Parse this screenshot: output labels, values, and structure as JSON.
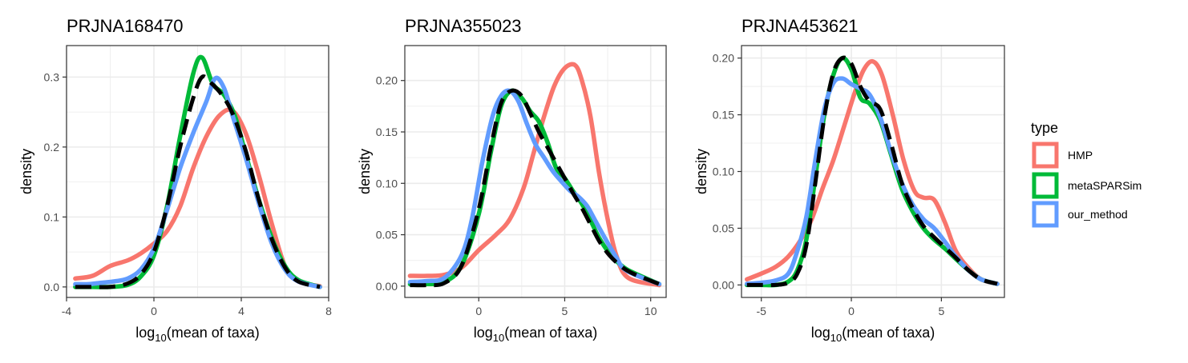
{
  "chart_data": [
    {
      "type": "line",
      "title": "PRJNA168470",
      "xlabel": {
        "prefix": "log",
        "sub": "10",
        "suffix": "(mean of taxa)"
      },
      "ylabel": "density",
      "xlim": [
        -4.0,
        8.0
      ],
      "ylim": [
        -0.015,
        0.345
      ],
      "xticks": [
        -4,
        0,
        4,
        8
      ],
      "xtick_labels": [
        "-4",
        "0",
        "4",
        "8"
      ],
      "yticks": [
        0.0,
        0.1,
        0.2,
        0.3
      ],
      "ytick_labels": [
        "0.0",
        "0.1",
        "0.2",
        "0.3"
      ],
      "grid": true,
      "series": [
        {
          "name": "HMP",
          "x": [
            -3.6,
            -2.8,
            -2,
            -1.2,
            -0.6,
            0,
            0.6,
            1.2,
            1.8,
            2.4,
            3,
            3.6,
            4.2,
            4.8,
            5.4,
            6,
            6.6,
            7.6
          ],
          "y": [
            0.012,
            0.016,
            0.03,
            0.038,
            0.048,
            0.062,
            0.08,
            0.115,
            0.17,
            0.215,
            0.245,
            0.252,
            0.22,
            0.16,
            0.09,
            0.03,
            0.008,
            0.001
          ]
        },
        {
          "name": "metaSPARSim",
          "x": [
            -3.6,
            -2.8,
            -2,
            -1.2,
            -0.6,
            0,
            0.6,
            1.2,
            1.8,
            2.2,
            2.7,
            3.2,
            3.7,
            4.2,
            4.8,
            5.4,
            6,
            6.6,
            7.6
          ],
          "y": [
            0,
            0,
            0,
            0.003,
            0.015,
            0.045,
            0.115,
            0.215,
            0.305,
            0.328,
            0.29,
            0.275,
            0.245,
            0.19,
            0.125,
            0.07,
            0.03,
            0.01,
            0
          ]
        },
        {
          "name": "our_method",
          "x": [
            -3.6,
            -3,
            -2.4,
            -1.8,
            -1.2,
            -0.6,
            0,
            0.6,
            1.2,
            1.8,
            2.4,
            2.8,
            3.2,
            3.6,
            4.2,
            4.8,
            5.4,
            6,
            6.6,
            7.6
          ],
          "y": [
            0.004,
            0.004,
            0.006,
            0.008,
            0.012,
            0.025,
            0.055,
            0.11,
            0.17,
            0.22,
            0.265,
            0.298,
            0.285,
            0.245,
            0.185,
            0.12,
            0.062,
            0.025,
            0.008,
            0
          ]
        },
        {
          "name": "",
          "style": "dashed",
          "x": [
            -3.6,
            -2.8,
            -2,
            -1.2,
            -0.6,
            0,
            0.6,
            1.2,
            1.8,
            2.2,
            2.6,
            3.1,
            3.6,
            4.2,
            4.8,
            5.4,
            6,
            6.6,
            7.6
          ],
          "y": [
            0,
            0,
            0,
            0.005,
            0.018,
            0.05,
            0.115,
            0.2,
            0.27,
            0.3,
            0.292,
            0.275,
            0.248,
            0.195,
            0.125,
            0.068,
            0.028,
            0.008,
            0
          ]
        }
      ]
    },
    {
      "type": "line",
      "title": "PRJNA355023",
      "xlabel": {
        "prefix": "log",
        "sub": "10",
        "suffix": "(mean of taxa)"
      },
      "ylabel": "density",
      "xlim": [
        -4.3,
        10.9
      ],
      "ylim": [
        -0.011,
        0.234
      ],
      "xticks": [
        0,
        5,
        10
      ],
      "xtick_labels": [
        "0",
        "5",
        "10"
      ],
      "yticks": [
        0.0,
        0.05,
        0.1,
        0.15,
        0.2
      ],
      "ytick_labels": [
        "0.00",
        "0.05",
        "0.10",
        "0.15",
        "0.20"
      ],
      "grid": true,
      "series": [
        {
          "name": "HMP",
          "x": [
            -4,
            -3,
            -2,
            -1,
            0,
            1,
            1.8,
            2.6,
            3.2,
            3.8,
            4.4,
            5,
            5.6,
            6,
            6.5,
            7,
            7.5,
            8,
            8.7,
            10.5
          ],
          "y": [
            0.01,
            0.01,
            0.011,
            0.018,
            0.035,
            0.05,
            0.065,
            0.095,
            0.13,
            0.165,
            0.195,
            0.212,
            0.215,
            0.2,
            0.165,
            0.11,
            0.065,
            0.03,
            0.008,
            0.001
          ]
        },
        {
          "name": "metaSPARSim",
          "x": [
            -4,
            -3,
            -2,
            -1,
            0,
            0.7,
            1.3,
            1.9,
            2.5,
            3,
            3.5,
            4,
            4.5,
            5,
            5.5,
            6,
            6.5,
            7,
            7.6,
            8.3,
            9,
            10.5
          ],
          "y": [
            0.002,
            0.002,
            0.004,
            0.02,
            0.07,
            0.13,
            0.175,
            0.19,
            0.183,
            0.17,
            0.16,
            0.14,
            0.115,
            0.105,
            0.092,
            0.08,
            0.064,
            0.047,
            0.032,
            0.02,
            0.013,
            0.002
          ]
        },
        {
          "name": "our_method",
          "x": [
            -4,
            -3,
            -2,
            -1,
            -0.4,
            0.2,
            0.8,
            1.3,
            1.8,
            2.3,
            2.8,
            3.3,
            3.8,
            4.3,
            4.8,
            5.3,
            5.8,
            6.3,
            6.8,
            7.4,
            8,
            8.6,
            10.5
          ],
          "y": [
            0.004,
            0.005,
            0.008,
            0.03,
            0.065,
            0.12,
            0.165,
            0.185,
            0.19,
            0.18,
            0.158,
            0.138,
            0.125,
            0.112,
            0.102,
            0.093,
            0.087,
            0.078,
            0.063,
            0.045,
            0.028,
            0.015,
            0.002
          ]
        },
        {
          "name": "",
          "style": "dashed",
          "x": [
            -4,
            -3,
            -2,
            -1,
            0,
            0.7,
            1.3,
            1.9,
            2.5,
            3,
            3.5,
            4,
            4.5,
            5,
            5.5,
            6,
            6.5,
            7,
            7.6,
            8.3,
            9,
            10.5
          ],
          "y": [
            0.001,
            0.001,
            0.003,
            0.02,
            0.075,
            0.135,
            0.178,
            0.19,
            0.185,
            0.168,
            0.15,
            0.135,
            0.12,
            0.105,
            0.09,
            0.076,
            0.06,
            0.044,
            0.03,
            0.019,
            0.012,
            0.002
          ]
        }
      ]
    },
    {
      "type": "line",
      "title": "PRJNA453621",
      "xlabel": {
        "prefix": "log",
        "sub": "10",
        "suffix": "(mean of taxa)"
      },
      "ylabel": "density",
      "xlim": [
        -6.1,
        8.5
      ],
      "ylim": [
        -0.011,
        0.211
      ],
      "xticks": [
        -5,
        0,
        5
      ],
      "xtick_labels": [
        "-5",
        "0",
        "5"
      ],
      "yticks": [
        0.0,
        0.05,
        0.1,
        0.15,
        0.2
      ],
      "ytick_labels": [
        "0.00",
        "0.05",
        "0.10",
        "0.15",
        "0.20"
      ],
      "grid": true,
      "series": [
        {
          "name": "HMP",
          "x": [
            -5.8,
            -5,
            -4.2,
            -3.5,
            -2.8,
            -2.2,
            -1.6,
            -1,
            -0.4,
            0.2,
            0.7,
            1.2,
            1.7,
            2.3,
            2.9,
            3.5,
            4,
            4.6,
            5.2,
            5.8,
            6.5,
            7.2,
            8.1
          ],
          "y": [
            0.005,
            0.01,
            0.016,
            0.025,
            0.04,
            0.058,
            0.085,
            0.11,
            0.14,
            0.17,
            0.19,
            0.197,
            0.185,
            0.15,
            0.11,
            0.083,
            0.077,
            0.075,
            0.055,
            0.03,
            0.015,
            0.005,
            0.001
          ]
        },
        {
          "name": "metaSPARSim",
          "x": [
            -5.8,
            -5,
            -4.2,
            -3.5,
            -3,
            -2.5,
            -2,
            -1.5,
            -1,
            -0.5,
            0,
            0.5,
            1,
            1.6,
            2.2,
            2.8,
            3.4,
            4,
            4.6,
            5.2,
            5.8,
            6.5,
            7.2,
            8.1
          ],
          "y": [
            0,
            0,
            0,
            0.003,
            0.013,
            0.04,
            0.095,
            0.15,
            0.185,
            0.2,
            0.19,
            0.165,
            0.16,
            0.145,
            0.115,
            0.085,
            0.065,
            0.05,
            0.04,
            0.032,
            0.023,
            0.013,
            0.005,
            0.001
          ]
        },
        {
          "name": "our_method",
          "x": [
            -5.8,
            -5,
            -4.2,
            -3.5,
            -3,
            -2.5,
            -2,
            -1.5,
            -1,
            -0.5,
            0,
            0.5,
            1,
            1.6,
            2.2,
            2.8,
            3.4,
            4,
            4.6,
            5.2,
            5.8,
            6.5,
            7.2,
            8.1
          ],
          "y": [
            0.001,
            0.002,
            0.004,
            0.01,
            0.03,
            0.06,
            0.11,
            0.155,
            0.178,
            0.182,
            0.177,
            0.173,
            0.168,
            0.148,
            0.117,
            0.09,
            0.071,
            0.058,
            0.05,
            0.038,
            0.025,
            0.013,
            0.005,
            0.001
          ]
        },
        {
          "name": "",
          "style": "dashed",
          "x": [
            -5.8,
            -5,
            -4.2,
            -3.5,
            -3,
            -2.5,
            -2,
            -1.5,
            -1,
            -0.5,
            0,
            0.5,
            1,
            1.6,
            2.2,
            2.8,
            3.4,
            4,
            4.6,
            5.2,
            5.8,
            6.5,
            7.2,
            8.1
          ],
          "y": [
            0,
            0,
            0,
            0.002,
            0.01,
            0.035,
            0.09,
            0.148,
            0.187,
            0.2,
            0.195,
            0.175,
            0.162,
            0.155,
            0.125,
            0.09,
            0.068,
            0.052,
            0.042,
            0.033,
            0.024,
            0.013,
            0.005,
            0.001
          ]
        }
      ]
    }
  ],
  "legend": {
    "title": "type",
    "entries": [
      {
        "name": "HMP",
        "color": "#F8766D"
      },
      {
        "name": "metaSPARSim",
        "color": "#00BA38"
      },
      {
        "name": "our_method",
        "color": "#619CFF"
      }
    ]
  },
  "colors": {
    "HMP": "#F8766D",
    "metaSPARSim": "#00BA38",
    "our_method": "#619CFF",
    "dashed": "#000000",
    "grid": "#ebebeb",
    "panel_border": "#333333"
  }
}
